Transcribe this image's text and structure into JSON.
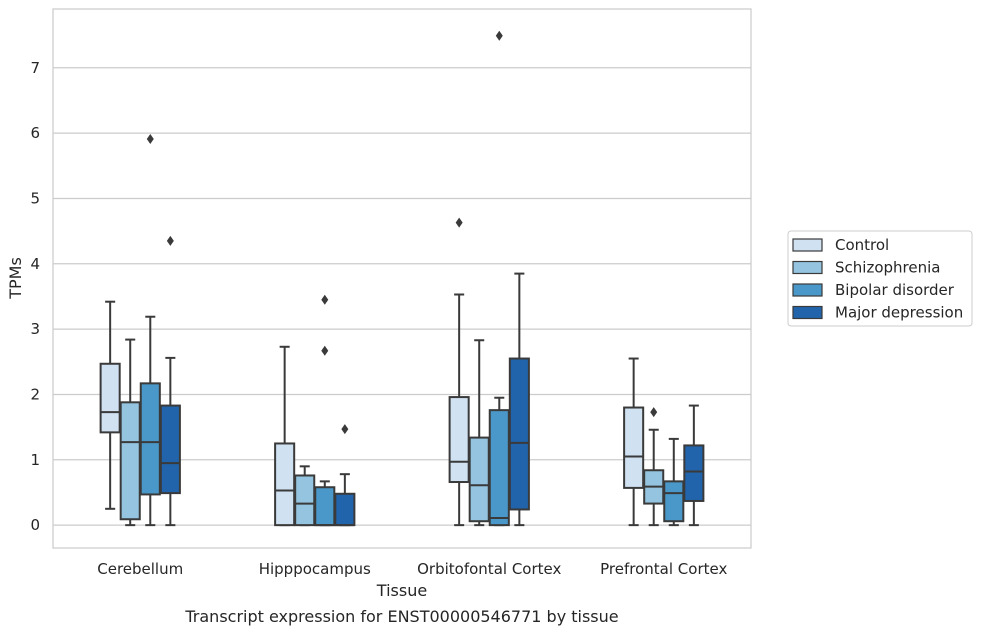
{
  "chart_data": {
    "type": "box",
    "xlabel": "Tissue",
    "ylabel": "TPMs",
    "caption": "Transcript expression for ENST00000546771 by tissue",
    "categories": [
      "Cerebellum",
      "Hipppocampus",
      "Orbitofontal Cortex",
      "Prefrontal Cortex"
    ],
    "ylim": [
      -0.35,
      7.9
    ],
    "yticks": [
      0,
      1,
      2,
      3,
      4,
      5,
      6,
      7
    ],
    "grid": true,
    "legend_position": "right",
    "series": [
      {
        "name": "Control",
        "color": "#d0e1f2",
        "boxes": [
          {
            "q1": 1.42,
            "median": 1.73,
            "q3": 2.47,
            "whisker_low": 0.25,
            "whisker_high": 3.42,
            "outliers": []
          },
          {
            "q1": 0.0,
            "median": 0.53,
            "q3": 1.25,
            "whisker_low": 0.0,
            "whisker_high": 2.73,
            "outliers": []
          },
          {
            "q1": 0.66,
            "median": 0.97,
            "q3": 1.96,
            "whisker_low": 0.0,
            "whisker_high": 3.53,
            "outliers": [
              4.63
            ]
          },
          {
            "q1": 0.57,
            "median": 1.05,
            "q3": 1.8,
            "whisker_low": 0.0,
            "whisker_high": 2.55,
            "outliers": []
          }
        ]
      },
      {
        "name": "Schizophrenia",
        "color": "#94c4df",
        "boxes": [
          {
            "q1": 0.09,
            "median": 1.27,
            "q3": 1.88,
            "whisker_low": 0.0,
            "whisker_high": 2.84,
            "outliers": []
          },
          {
            "q1": 0.0,
            "median": 0.33,
            "q3": 0.76,
            "whisker_low": 0.0,
            "whisker_high": 0.9,
            "outliers": []
          },
          {
            "q1": 0.06,
            "median": 0.61,
            "q3": 1.34,
            "whisker_low": 0.0,
            "whisker_high": 2.83,
            "outliers": []
          },
          {
            "q1": 0.33,
            "median": 0.59,
            "q3": 0.84,
            "whisker_low": 0.0,
            "whisker_high": 1.46,
            "outliers": [
              1.73
            ]
          }
        ]
      },
      {
        "name": "Bipolar disorder",
        "color": "#4a98c9",
        "boxes": [
          {
            "q1": 0.47,
            "median": 1.27,
            "q3": 2.17,
            "whisker_low": 0.0,
            "whisker_high": 3.19,
            "outliers": [
              5.91
            ]
          },
          {
            "q1": 0.0,
            "median": 0.0,
            "q3": 0.58,
            "whisker_low": 0.0,
            "whisker_high": 0.67,
            "outliers": [
              2.67,
              3.45
            ]
          },
          {
            "q1": 0.0,
            "median": 0.11,
            "q3": 1.76,
            "whisker_low": 0.0,
            "whisker_high": 1.95,
            "outliers": [
              7.49
            ]
          },
          {
            "q1": 0.06,
            "median": 0.49,
            "q3": 0.67,
            "whisker_low": 0.0,
            "whisker_high": 1.32,
            "outliers": []
          }
        ]
      },
      {
        "name": "Major depression",
        "color": "#2164ab",
        "boxes": [
          {
            "q1": 0.49,
            "median": 0.95,
            "q3": 1.83,
            "whisker_low": 0.0,
            "whisker_high": 2.56,
            "outliers": [
              4.35
            ]
          },
          {
            "q1": 0.0,
            "median": 0.0,
            "q3": 0.48,
            "whisker_low": 0.0,
            "whisker_high": 0.78,
            "outliers": [
              1.47
            ]
          },
          {
            "q1": 0.24,
            "median": 1.26,
            "q3": 2.55,
            "whisker_low": 0.0,
            "whisker_high": 3.85,
            "outliers": []
          },
          {
            "q1": 0.37,
            "median": 0.82,
            "q3": 1.22,
            "whisker_low": 0.0,
            "whisker_high": 1.83,
            "outliers": []
          }
        ]
      }
    ]
  }
}
